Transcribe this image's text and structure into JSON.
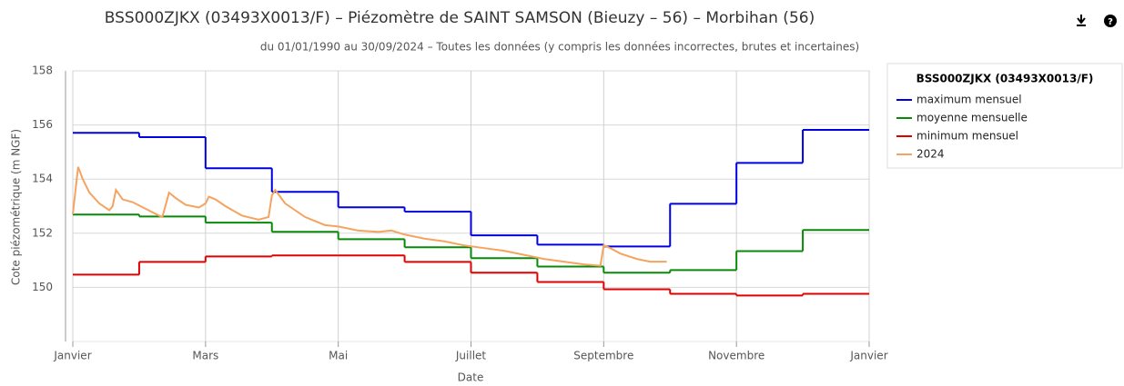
{
  "chart_data": {
    "type": "line",
    "title": "BSS000ZJKX (03493X0013/F) – Piézomètre de SAINT SAMSON (Bieuzy – 56) – Morbihan (56)",
    "subtitle": "du 01/01/1990 au 30/09/2024 – Toutes les données (y compris les données incorrectes, brutes et incertaines)",
    "x_label": "Date",
    "y_label": "Cote piézométrique (m NGF)",
    "legend_title": "BSS000ZJKX (03493X0013/F)",
    "legend": "right",
    "x": [
      0,
      1,
      2,
      3,
      4,
      5,
      6,
      7,
      8,
      9,
      10,
      11
    ],
    "xlim": [
      0,
      12
    ],
    "xticks": [
      {
        "value": 0,
        "label": "Janvier"
      },
      {
        "value": 2,
        "label": "Mars"
      },
      {
        "value": 4,
        "label": "Mai"
      },
      {
        "value": 6,
        "label": "Juillet"
      },
      {
        "value": 8,
        "label": "Septembre"
      },
      {
        "value": 10,
        "label": "Novembre"
      },
      {
        "value": 12,
        "label": "Janvier"
      }
    ],
    "ylim": [
      148,
      158
    ],
    "yticks": [
      150,
      152,
      154,
      156,
      158
    ],
    "grid": true,
    "series": [
      {
        "name": "maximum mensuel",
        "color": "#0000e0",
        "step": true,
        "values": [
          155.71,
          155.55,
          154.4,
          153.53,
          152.96,
          152.8,
          151.92,
          151.58,
          151.51,
          153.09,
          154.6,
          155.82
        ]
      },
      {
        "name": "moyenne mensuelle",
        "color": "#088a08",
        "step": true,
        "values": [
          152.69,
          152.62,
          152.39,
          152.05,
          151.78,
          151.48,
          151.08,
          150.77,
          150.54,
          150.64,
          151.34,
          152.12
        ]
      },
      {
        "name": "minimum mensuel",
        "color": "#e00000",
        "step": true,
        "values": [
          150.47,
          150.94,
          151.14,
          151.18,
          151.18,
          150.94,
          150.54,
          150.2,
          149.93,
          149.76,
          149.7,
          149.76
        ]
      },
      {
        "name": "2024",
        "color": "#f4a460",
        "step": false,
        "x": [
          0,
          0.08,
          0.15,
          0.25,
          0.4,
          0.55,
          0.6,
          0.65,
          0.75,
          0.9,
          1.1,
          1.3,
          1.35,
          1.45,
          1.55,
          1.7,
          1.9,
          2,
          2.05,
          2.15,
          2.3,
          2.55,
          2.8,
          2.95,
          3,
          3.05,
          3.2,
          3.5,
          3.8,
          4,
          4.3,
          4.6,
          4.8,
          5,
          5.3,
          5.6,
          5.9,
          6.2,
          6.5,
          6.8,
          7.1,
          7.4,
          7.7,
          7.95,
          8,
          8.1,
          8.25,
          8.5,
          8.7,
          8.95
        ],
        "values": [
          152.7,
          154.45,
          154,
          153.5,
          153.1,
          152.85,
          153,
          153.6,
          153.25,
          153.15,
          152.9,
          152.65,
          152.6,
          153.5,
          153.3,
          153.05,
          152.95,
          153.1,
          153.35,
          153.25,
          153,
          152.65,
          152.5,
          152.6,
          153.4,
          153.6,
          153.1,
          152.6,
          152.3,
          152.25,
          152.1,
          152.05,
          152.1,
          151.95,
          151.8,
          151.7,
          151.55,
          151.45,
          151.35,
          151.2,
          151.05,
          150.95,
          150.85,
          150.8,
          151.55,
          151.45,
          151.25,
          151.05,
          150.95,
          150.95
        ]
      }
    ]
  }
}
